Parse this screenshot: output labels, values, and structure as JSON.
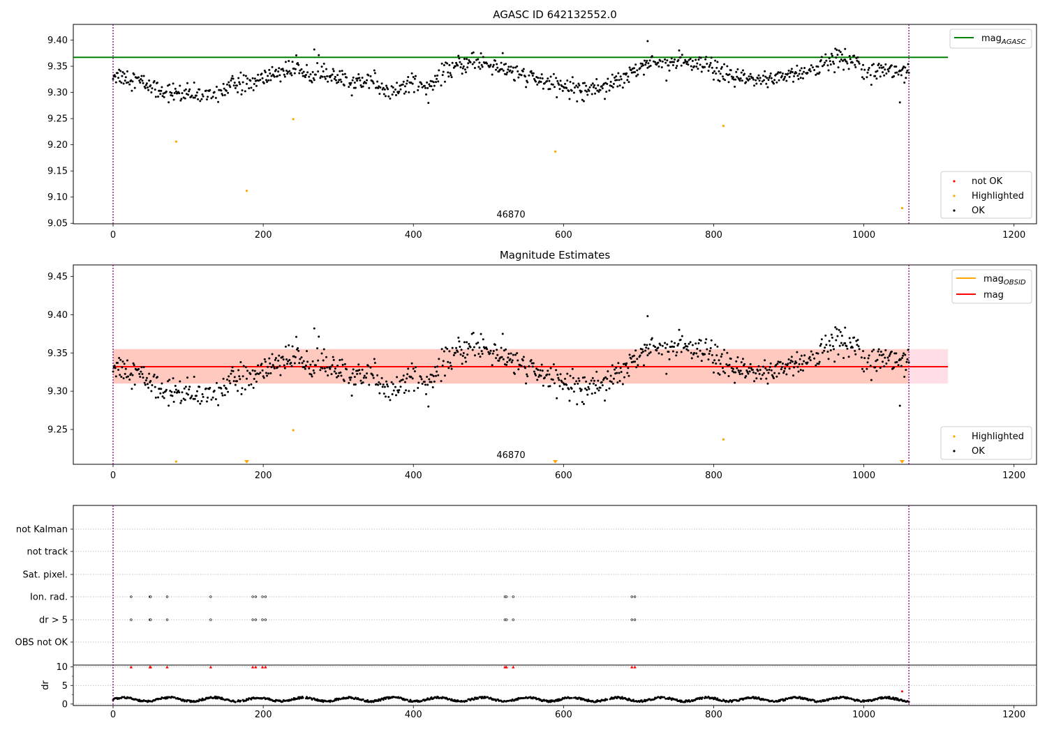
{
  "colors": {
    "ok": "#000000",
    "highlighted": "#ffa500",
    "not_ok": "#ff0000",
    "mag_agasc": "#008000",
    "mag_obsid": "#ffa500",
    "mag": "#ff0000",
    "band_outer": "#ffc0cb",
    "band_inner": "#ffa07a",
    "obsid_boundary": "#800080",
    "grid": "#b0b0b0"
  },
  "chart_data": [
    {
      "type": "scatter",
      "title": "AGASC ID 642132552.0",
      "xlim": [
        -53,
        1230
      ],
      "ylim": [
        9.049,
        9.43
      ],
      "x_ticks": [
        0,
        200,
        400,
        600,
        800,
        1000,
        1200
      ],
      "y_ticks": [
        9.05,
        9.1,
        9.15,
        9.2,
        9.25,
        9.3,
        9.35,
        9.4
      ],
      "y_tick_labels": [
        "9.05",
        "9.10",
        "9.15",
        "9.20",
        "9.25",
        "9.30",
        "9.35",
        "9.40"
      ],
      "obsid_label": "46870",
      "obsid_boundaries": [
        0,
        1060
      ],
      "legend_lines": [
        "mag",
        "AGASC"
      ],
      "legend_points": [
        "not OK",
        "Highlighted",
        "OK"
      ],
      "mag_agasc": 9.367,
      "mag_agasc_x_end": 1112,
      "highlighted_points": [
        [
          84,
          9.206
        ],
        [
          178,
          9.112
        ],
        [
          240,
          9.249
        ],
        [
          589,
          9.187
        ],
        [
          813,
          9.236
        ],
        [
          1051,
          9.079
        ]
      ],
      "ok_series_note": "OK points: ~1060 magnitude samples, 9.28–9.40, slow oscillation about 9.33"
    },
    {
      "type": "scatter",
      "title": "Magnitude Estimates",
      "xlim": [
        -53,
        1230
      ],
      "ylim": [
        9.2045,
        9.465
      ],
      "x_ticks": [
        0,
        200,
        400,
        600,
        800,
        1000,
        1200
      ],
      "y_ticks": [
        9.25,
        9.3,
        9.35,
        9.4,
        9.45
      ],
      "y_tick_labels": [
        "9.25",
        "9.30",
        "9.35",
        "9.40",
        "9.45"
      ],
      "obsid_label": "46870",
      "obsid_boundaries": [
        0,
        1060
      ],
      "legend_lines": [
        [
          "mag",
          "OBSID"
        ],
        [
          "mag",
          ""
        ]
      ],
      "legend_points": [
        "Highlighted",
        "OK"
      ],
      "mag": 9.332,
      "mag_obsid": 9.332,
      "band_outer": [
        9.31,
        9.355
      ],
      "band_inner": [
        9.31,
        9.355
      ],
      "band_x_end": 1112,
      "highlighted_points": [
        [
          84,
          9.208
        ],
        [
          240,
          9.249
        ],
        [
          813,
          9.237
        ]
      ],
      "highlighted_offscale_x": [
        178,
        589,
        1051
      ]
    },
    {
      "type": "scatter",
      "title": "",
      "xlim": [
        -53,
        1230
      ],
      "x_ticks": [
        0,
        200,
        400,
        600,
        800,
        1000,
        1200
      ],
      "flag_rows": [
        "not Kalman",
        "not track",
        "Sat. pixel.",
        "Ion. rad.",
        "dr > 5",
        "OBS not OK"
      ],
      "flag_x": [
        24,
        49,
        50,
        72,
        130,
        186,
        190,
        199,
        203,
        522,
        524,
        533,
        691,
        695
      ],
      "dr_ylabel": "dr",
      "dr_ylim": [
        -0.4,
        10.5
      ],
      "dr_ticks": [
        0,
        5,
        10
      ],
      "dr_tick_labels": [
        "0",
        "5",
        "10"
      ],
      "dr_outliers": [
        [
          1051,
          3.4
        ]
      ],
      "obsid_boundaries": [
        0,
        1060
      ]
    }
  ]
}
